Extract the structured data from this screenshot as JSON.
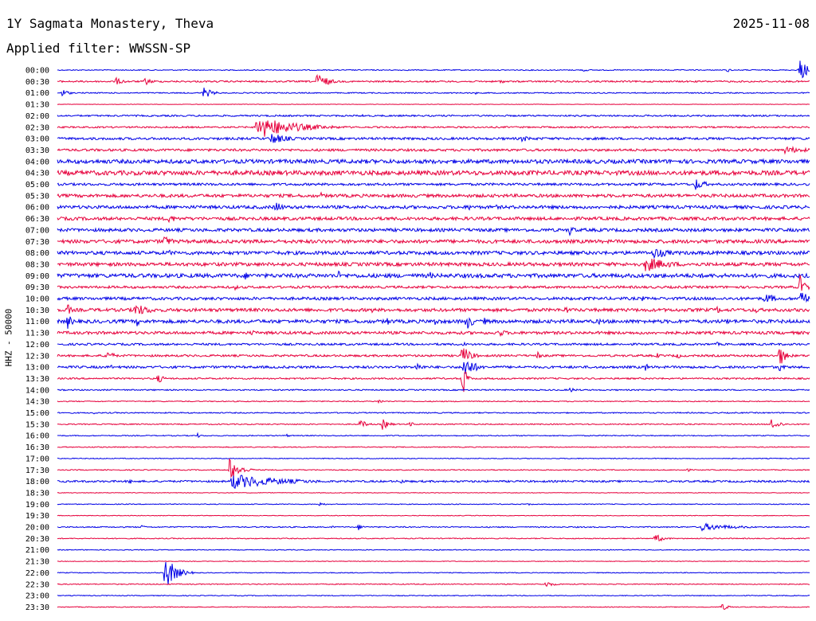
{
  "header": {
    "station": "1Y Sagmata Monastery, Theva",
    "date": "2025-11-08",
    "filter": "Applied filter: WWSSN-SP"
  },
  "chart_data": {
    "type": "line",
    "title": "1Y Sagmata Monastery, Theva",
    "ylabel": "HHZ - 50000",
    "colors": [
      "#0000e6",
      "#e6003c"
    ],
    "rows": [
      {
        "time": "00:00",
        "color": "#0000e6",
        "noise": 0.6,
        "events": [
          {
            "x": 733,
            "a": 3,
            "d": 4
          },
          {
            "x": 913,
            "a": 3,
            "d": 4
          },
          {
            "x": 1003,
            "a": 14,
            "d": 12
          }
        ]
      },
      {
        "time": "00:30",
        "color": "#e6003c",
        "noise": 1.0,
        "events": [
          {
            "x": 145,
            "a": 5,
            "d": 10
          },
          {
            "x": 182,
            "a": 5,
            "d": 10
          },
          {
            "x": 398,
            "a": 12,
            "d": 12
          },
          {
            "x": 628,
            "a": 3,
            "d": 6
          }
        ]
      },
      {
        "time": "01:00",
        "color": "#0000e6",
        "noise": 0.7,
        "events": [
          {
            "x": 78,
            "a": 5,
            "d": 8
          },
          {
            "x": 255,
            "a": 8,
            "d": 10
          },
          {
            "x": 596,
            "a": 2,
            "d": 4
          }
        ]
      },
      {
        "time": "01:30",
        "color": "#e6003c",
        "noise": 0.3,
        "events": []
      },
      {
        "time": "02:00",
        "color": "#0000e6",
        "noise": 1.0,
        "events": [
          {
            "x": 455,
            "a": 2,
            "d": 6
          }
        ]
      },
      {
        "time": "02:30",
        "color": "#e6003c",
        "noise": 1.0,
        "events": [
          {
            "x": 322,
            "a": 15,
            "d": 45
          },
          {
            "x": 340,
            "a": 8,
            "d": 20
          }
        ]
      },
      {
        "time": "03:00",
        "color": "#0000e6",
        "noise": 1.5,
        "events": [
          {
            "x": 340,
            "a": 8,
            "d": 20
          },
          {
            "x": 655,
            "a": 4,
            "d": 16
          }
        ]
      },
      {
        "time": "03:30",
        "color": "#e6003c",
        "noise": 1.5,
        "events": [
          {
            "x": 985,
            "a": 5,
            "d": 30
          }
        ]
      },
      {
        "time": "04:00",
        "color": "#0000e6",
        "noise": 2.5,
        "events": []
      },
      {
        "time": "04:30",
        "color": "#e6003c",
        "noise": 2.8,
        "events": []
      },
      {
        "time": "05:00",
        "color": "#0000e6",
        "noise": 1.5,
        "events": [
          {
            "x": 873,
            "a": 8,
            "d": 12
          }
        ]
      },
      {
        "time": "05:30",
        "color": "#e6003c",
        "noise": 2.0,
        "events": [
          {
            "x": 403,
            "a": 4,
            "d": 8
          }
        ]
      },
      {
        "time": "06:00",
        "color": "#0000e6",
        "noise": 2.0,
        "events": [
          {
            "x": 346,
            "a": 9,
            "d": 8
          },
          {
            "x": 588,
            "a": 5,
            "d": 6
          },
          {
            "x": 622,
            "a": 4,
            "d": 4
          }
        ]
      },
      {
        "time": "06:30",
        "color": "#e6003c",
        "noise": 2.0,
        "events": [
          {
            "x": 212,
            "a": 7,
            "d": 8
          }
        ]
      },
      {
        "time": "07:00",
        "color": "#0000e6",
        "noise": 2.0,
        "events": [
          {
            "x": 715,
            "a": 8,
            "d": 6
          }
        ]
      },
      {
        "time": "07:30",
        "color": "#e6003c",
        "noise": 2.2,
        "events": [
          {
            "x": 205,
            "a": 9,
            "d": 10
          }
        ]
      },
      {
        "time": "08:00",
        "color": "#0000e6",
        "noise": 2.2,
        "events": [
          {
            "x": 210,
            "a": 5,
            "d": 8
          },
          {
            "x": 820,
            "a": 8,
            "d": 20
          }
        ]
      },
      {
        "time": "08:30",
        "color": "#e6003c",
        "noise": 2.2,
        "events": [
          {
            "x": 810,
            "a": 10,
            "d": 30
          }
        ]
      },
      {
        "time": "09:00",
        "color": "#0000e6",
        "noise": 2.5,
        "events": [
          {
            "x": 308,
            "a": 5,
            "d": 10
          },
          {
            "x": 425,
            "a": 6,
            "d": 4
          },
          {
            "x": 540,
            "a": 5,
            "d": 4
          },
          {
            "x": 877,
            "a": 5,
            "d": 4
          }
        ]
      },
      {
        "time": "09:30",
        "color": "#e6003c",
        "noise": 1.5,
        "events": [
          {
            "x": 295,
            "a": 4,
            "d": 4
          },
          {
            "x": 1004,
            "a": 16,
            "d": 6
          }
        ]
      },
      {
        "time": "10:00",
        "color": "#0000e6",
        "noise": 1.8,
        "events": [
          {
            "x": 805,
            "a": 4,
            "d": 6
          },
          {
            "x": 960,
            "a": 8,
            "d": 12
          },
          {
            "x": 1005,
            "a": 18,
            "d": 6
          }
        ]
      },
      {
        "time": "10:30",
        "color": "#e6003c",
        "noise": 2.0,
        "events": [
          {
            "x": 85,
            "a": 10,
            "d": 4
          },
          {
            "x": 128,
            "a": 4,
            "d": 6
          },
          {
            "x": 168,
            "a": 9,
            "d": 20
          },
          {
            "x": 188,
            "a": 4,
            "d": 8
          },
          {
            "x": 466,
            "a": 4,
            "d": 6
          },
          {
            "x": 710,
            "a": 7,
            "d": 4
          },
          {
            "x": 900,
            "a": 6,
            "d": 4
          },
          {
            "x": 948,
            "a": 6,
            "d": 4
          }
        ]
      },
      {
        "time": "11:00",
        "color": "#0000e6",
        "noise": 2.2,
        "events": [
          {
            "x": 85,
            "a": 10,
            "d": 6
          },
          {
            "x": 172,
            "a": 6,
            "d": 4
          },
          {
            "x": 486,
            "a": 5,
            "d": 8
          },
          {
            "x": 546,
            "a": 6,
            "d": 6
          },
          {
            "x": 585,
            "a": 12,
            "d": 8
          },
          {
            "x": 608,
            "a": 5,
            "d": 6
          },
          {
            "x": 752,
            "a": 5,
            "d": 4
          },
          {
            "x": 912,
            "a": 5,
            "d": 4
          }
        ]
      },
      {
        "time": "11:30",
        "color": "#e6003c",
        "noise": 1.8,
        "events": [
          {
            "x": 315,
            "a": 4,
            "d": 10
          },
          {
            "x": 625,
            "a": 5,
            "d": 14
          }
        ]
      },
      {
        "time": "12:00",
        "color": "#0000e6",
        "noise": 1.3,
        "events": [
          {
            "x": 580,
            "a": 5,
            "d": 4
          },
          {
            "x": 900,
            "a": 3,
            "d": 4
          }
        ]
      },
      {
        "time": "12:30",
        "color": "#e6003c",
        "noise": 1.3,
        "events": [
          {
            "x": 133,
            "a": 9,
            "d": 8
          },
          {
            "x": 580,
            "a": 14,
            "d": 10
          },
          {
            "x": 675,
            "a": 6,
            "d": 4
          },
          {
            "x": 825,
            "a": 4,
            "d": 4
          },
          {
            "x": 850,
            "a": 5,
            "d": 4
          },
          {
            "x": 978,
            "a": 14,
            "d": 8
          }
        ]
      },
      {
        "time": "13:00",
        "color": "#0000e6",
        "noise": 1.5,
        "events": [
          {
            "x": 138,
            "a": 4,
            "d": 4
          },
          {
            "x": 522,
            "a": 7,
            "d": 8
          },
          {
            "x": 582,
            "a": 16,
            "d": 12
          },
          {
            "x": 810,
            "a": 6,
            "d": 4
          },
          {
            "x": 978,
            "a": 6,
            "d": 6
          }
        ]
      },
      {
        "time": "13:30",
        "color": "#e6003c",
        "noise": 1.0,
        "events": [
          {
            "x": 198,
            "a": 6,
            "d": 8
          },
          {
            "x": 580,
            "a": 30,
            "d": 4
          }
        ]
      },
      {
        "time": "14:00",
        "color": "#0000e6",
        "noise": 0.8,
        "events": [
          {
            "x": 715,
            "a": 3,
            "d": 10
          }
        ]
      },
      {
        "time": "14:30",
        "color": "#e6003c",
        "noise": 0.6,
        "events": [
          {
            "x": 475,
            "a": 4,
            "d": 4
          }
        ]
      },
      {
        "time": "15:00",
        "color": "#0000e6",
        "noise": 0.7,
        "events": [
          {
            "x": 118,
            "a": 2,
            "d": 4
          }
        ]
      },
      {
        "time": "15:30",
        "color": "#e6003c",
        "noise": 0.7,
        "events": [
          {
            "x": 452,
            "a": 6,
            "d": 8
          },
          {
            "x": 480,
            "a": 7,
            "d": 8
          },
          {
            "x": 515,
            "a": 4,
            "d": 4
          },
          {
            "x": 968,
            "a": 8,
            "d": 10
          }
        ]
      },
      {
        "time": "16:00",
        "color": "#0000e6",
        "noise": 0.6,
        "events": [
          {
            "x": 248,
            "a": 3,
            "d": 4
          },
          {
            "x": 360,
            "a": 2,
            "d": 4
          }
        ]
      },
      {
        "time": "16:30",
        "color": "#e6003c",
        "noise": 0.6,
        "events": []
      },
      {
        "time": "17:00",
        "color": "#0000e6",
        "noise": 0.5,
        "events": []
      },
      {
        "time": "17:30",
        "color": "#e6003c",
        "noise": 0.6,
        "events": [
          {
            "x": 288,
            "a": 16,
            "d": 12
          },
          {
            "x": 862,
            "a": 3,
            "d": 4
          }
        ]
      },
      {
        "time": "18:00",
        "color": "#0000e6",
        "noise": 1.2,
        "events": [
          {
            "x": 163,
            "a": 4,
            "d": 6
          },
          {
            "x": 290,
            "a": 10,
            "d": 60
          },
          {
            "x": 503,
            "a": 3,
            "d": 10
          }
        ]
      },
      {
        "time": "18:30",
        "color": "#e6003c",
        "noise": 0.4,
        "events": []
      },
      {
        "time": "19:00",
        "color": "#0000e6",
        "noise": 0.5,
        "events": [
          {
            "x": 401,
            "a": 3,
            "d": 6
          },
          {
            "x": 663,
            "a": 2,
            "d": 4
          }
        ]
      },
      {
        "time": "19:30",
        "color": "#e6003c",
        "noise": 0.4,
        "events": []
      },
      {
        "time": "20:00",
        "color": "#0000e6",
        "noise": 0.7,
        "events": [
          {
            "x": 178,
            "a": 3,
            "d": 4
          },
          {
            "x": 416,
            "a": 2,
            "d": 4
          },
          {
            "x": 450,
            "a": 4,
            "d": 6
          },
          {
            "x": 880,
            "a": 5,
            "d": 40
          }
        ]
      },
      {
        "time": "20:30",
        "color": "#e6003c",
        "noise": 0.6,
        "events": [
          {
            "x": 822,
            "a": 6,
            "d": 10
          }
        ]
      },
      {
        "time": "21:00",
        "color": "#0000e6",
        "noise": 0.5,
        "events": []
      },
      {
        "time": "21:30",
        "color": "#e6003c",
        "noise": 0.4,
        "events": []
      },
      {
        "time": "22:00",
        "color": "#0000e6",
        "noise": 0.5,
        "events": [
          {
            "x": 207,
            "a": 24,
            "d": 12
          }
        ]
      },
      {
        "time": "22:30",
        "color": "#e6003c",
        "noise": 0.6,
        "events": [
          {
            "x": 685,
            "a": 4,
            "d": 10
          }
        ]
      },
      {
        "time": "23:00",
        "color": "#0000e6",
        "noise": 0.5,
        "events": []
      },
      {
        "time": "23:30",
        "color": "#e6003c",
        "noise": 0.5,
        "events": [
          {
            "x": 905,
            "a": 5,
            "d": 8
          }
        ]
      }
    ]
  }
}
